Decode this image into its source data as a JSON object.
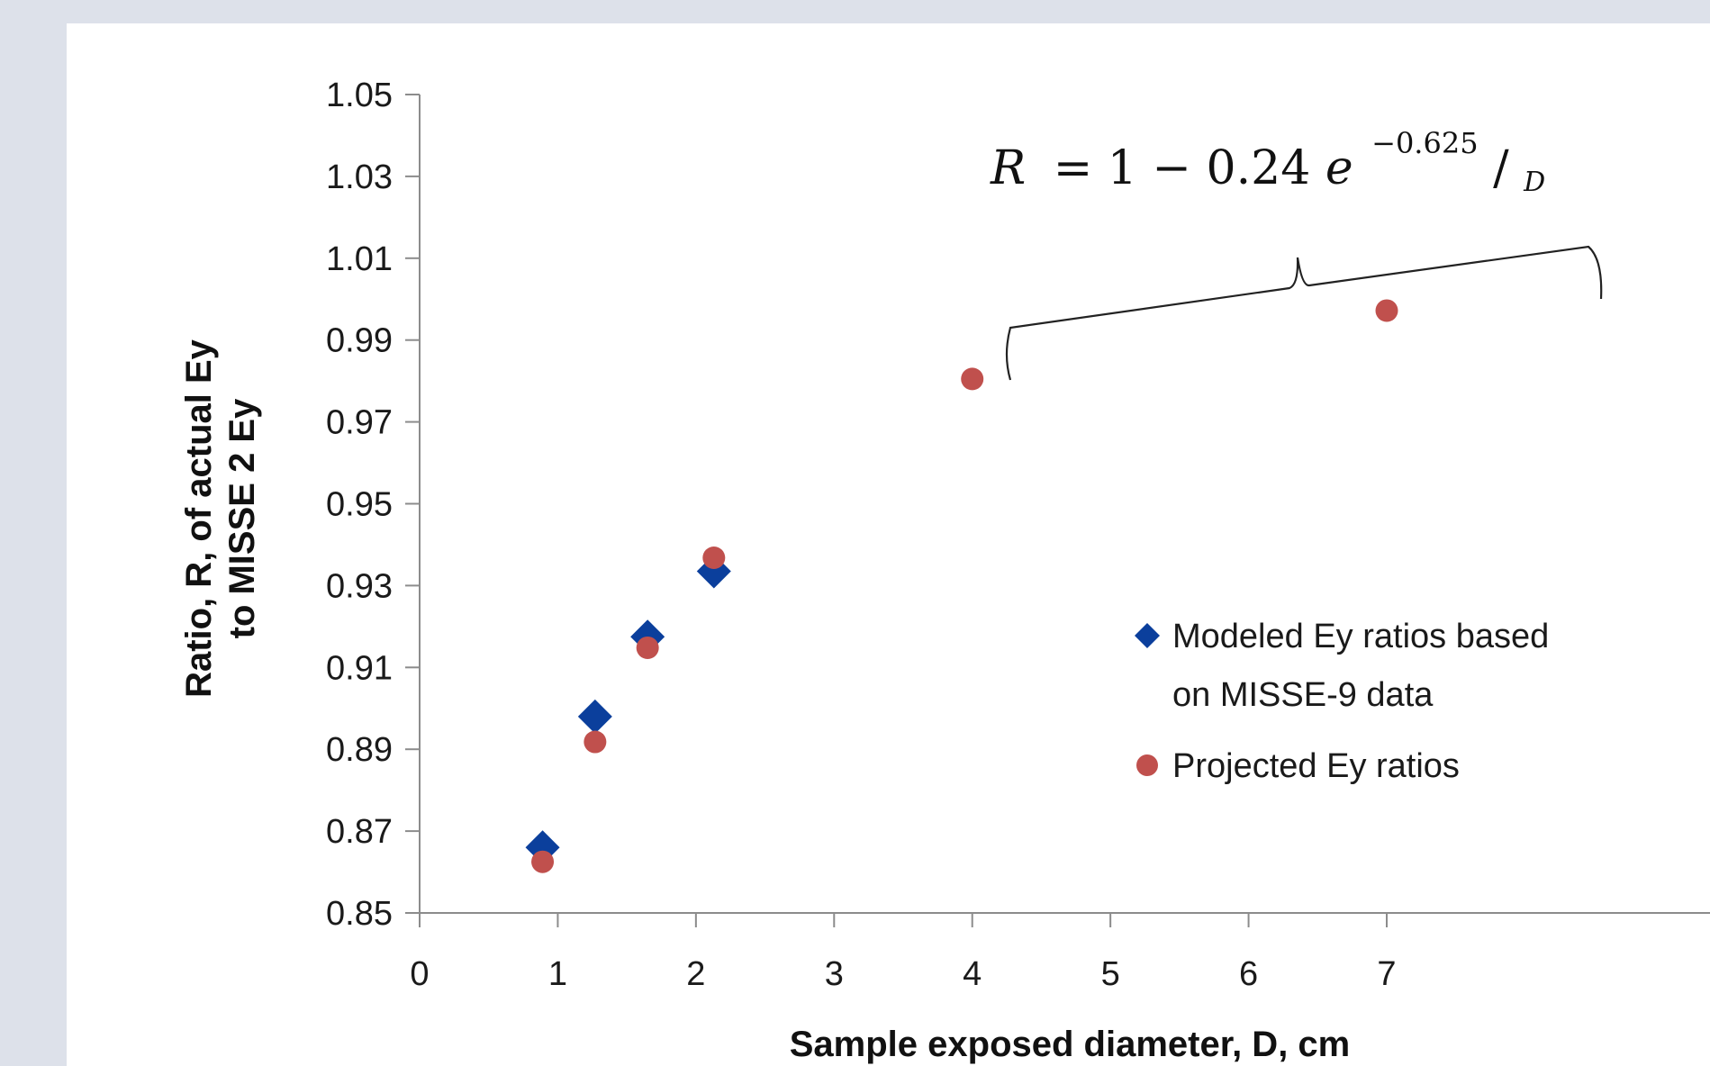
{
  "chart_data": {
    "type": "scatter",
    "xlabel": "Sample exposed diameter, D, cm",
    "ylabel": [
      "Ratio, R, of actual Ey",
      "to MISSE 2 Ey"
    ],
    "xlim": [
      0,
      7
    ],
    "ylim": [
      0.85,
      1.05
    ],
    "x_ticks": [
      "0",
      "1",
      "2",
      "3",
      "4",
      "5",
      "6",
      "7"
    ],
    "y_ticks": [
      "0.85",
      "0.87",
      "0.89",
      "0.91",
      "0.93",
      "0.95",
      "0.97",
      "0.99",
      "1.01",
      "1.03",
      "1.05"
    ],
    "grid": false,
    "legend_position": "right",
    "series": [
      {
        "name": "Modeled Ey ratios based on MISSE-9 data",
        "marker": "diamond",
        "color": "#0b3f9c",
        "points": [
          [
            0.89,
            0.866
          ],
          [
            1.27,
            0.898
          ],
          [
            1.65,
            0.9175
          ],
          [
            2.13,
            0.9335
          ]
        ]
      },
      {
        "name": "Projected Ey ratios",
        "marker": "circle",
        "color": "#c0504d",
        "points": [
          [
            0.89,
            0.8625
          ],
          [
            1.27,
            0.8918
          ],
          [
            1.65,
            0.9148
          ],
          [
            2.13,
            0.9368
          ],
          [
            4.0,
            0.9805
          ],
          [
            7.0,
            0.9972
          ]
        ]
      }
    ],
    "legend": {
      "modeled_line1": "Modeled Ey ratios based",
      "modeled_line2": "on MISSE-9 data",
      "projected": "Projected Ey ratios"
    },
    "annotation": {
      "lhs": "R",
      "eq": "= 1 − 0.24",
      "base": "e",
      "exp_num": "−0.625",
      "exp_den": "D"
    }
  }
}
